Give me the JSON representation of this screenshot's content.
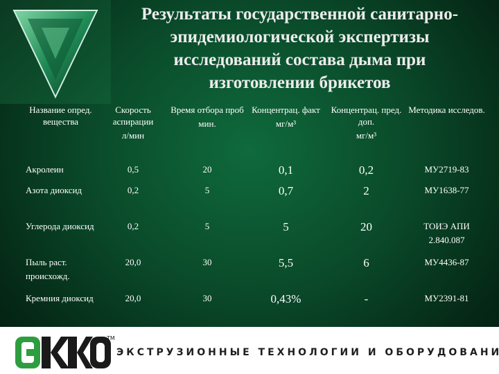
{
  "title_lines": [
    "Результаты государственной санитарно-",
    "эпидемиологической экспертизы",
    "исследований состава дыма при",
    "изготовлении брикетов"
  ],
  "table": {
    "headers": [
      {
        "label": "Название опред. вещества",
        "unit": ""
      },
      {
        "label": "Скорость аспирации",
        "unit": "л/мин"
      },
      {
        "label": "Время отбора проб",
        "unit": "мин."
      },
      {
        "label": "Концентрац. факт",
        "unit": "мг/м³"
      },
      {
        "label": "Концентрац. пред. доп.",
        "unit": "мг/м³"
      },
      {
        "label": "Методика исследов.",
        "unit": ""
      }
    ],
    "rows": [
      {
        "name": "Акролеин",
        "speed": "0,5",
        "time": "20",
        "fact": "0,1",
        "limit": "0,2",
        "method": "МУ2719-83"
      },
      {
        "name": "Азота диоксид",
        "speed": "0,2",
        "time": "5",
        "fact": "0,7",
        "limit": "2",
        "method": "МУ1638-77"
      },
      {
        "name": "Углерода диоксид",
        "speed": "0,2",
        "time": "5",
        "fact": "5",
        "limit": "20",
        "method": "ТОИЭ АПИ 2.840.087"
      },
      {
        "name": "Пыль раст. происхожд.",
        "speed": "20,0",
        "time": "30",
        "fact": "5,5",
        "limit": "6",
        "method": "МУ4436-87"
      },
      {
        "name": "Кремния диоксид",
        "speed": "20,0",
        "time": "30",
        "fact": "0,43%",
        "limit": "-",
        "method": "МУ2391-81"
      }
    ]
  },
  "footer": {
    "logo": "EKKO",
    "trademark": "TM",
    "tagline": "ЭКСТРУЗИОННЫЕ ТЕХНОЛОГИИ И ОБОРУДОВАНИЕ"
  },
  "colors": {
    "background": "#0a4a2a",
    "logo_green": "#2e9d3f"
  }
}
